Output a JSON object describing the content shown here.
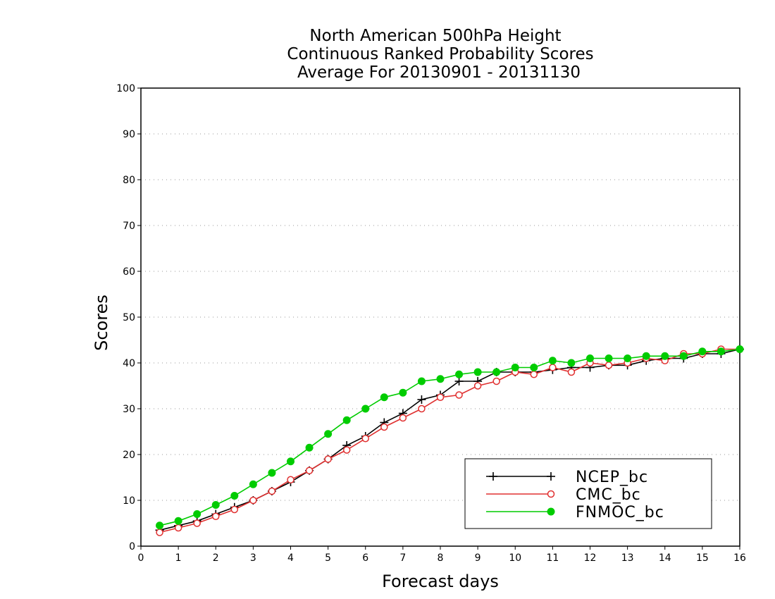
{
  "chart_data": {
    "type": "line",
    "title": [
      "North American 500hPa Height",
      "Continuous Ranked Probability Scores",
      "Average For 20130901 - 20131130"
    ],
    "xlabel": "Forecast days",
    "ylabel": "Scores",
    "xlim": [
      0,
      16
    ],
    "ylim": [
      0,
      100
    ],
    "xticks": [
      "0",
      "1",
      "2",
      "3",
      "4",
      "5",
      "6",
      "7",
      "8",
      "9",
      "10",
      "11",
      "12",
      "13",
      "14",
      "15",
      "16"
    ],
    "yticks": [
      "0",
      "10",
      "20",
      "30",
      "40",
      "50",
      "60",
      "70",
      "80",
      "90",
      "100"
    ],
    "grid": "horizontal dotted",
    "legend_position": "bottom-right",
    "x": [
      0.5,
      1,
      1.5,
      2,
      2.5,
      3,
      3.5,
      4,
      4.5,
      5,
      5.5,
      6,
      6.5,
      7,
      7.5,
      8,
      8.5,
      9,
      9.5,
      10,
      10.5,
      11,
      11.5,
      12,
      12.5,
      13,
      13.5,
      14,
      14.5,
      15,
      15.5,
      16
    ],
    "series": [
      {
        "name": "NCEP_bc",
        "color": "#000000",
        "marker": "plus",
        "values": [
          3.5,
          4.5,
          5.5,
          7,
          8.5,
          10,
          12,
          14,
          16.5,
          19,
          22,
          24,
          27,
          29,
          32,
          33,
          36,
          36,
          38,
          38,
          38,
          38.5,
          39,
          39,
          39.5,
          39.5,
          40.5,
          41,
          41,
          42,
          42,
          43
        ]
      },
      {
        "name": "CMC_bc",
        "color": "#e03030",
        "marker": "open-circle",
        "values": [
          3,
          4,
          5,
          6.5,
          8,
          10,
          12,
          14.5,
          16.5,
          19,
          21,
          23.5,
          26,
          28,
          30,
          32.5,
          33,
          35,
          36,
          38,
          37.5,
          39,
          38,
          40,
          39.5,
          40,
          41,
          40.5,
          42,
          42,
          43,
          43
        ]
      },
      {
        "name": "FNMOC_bc",
        "color": "#00cc00",
        "marker": "filled-circle",
        "values": [
          4.5,
          5.5,
          7,
          9,
          11,
          13.5,
          16,
          18.5,
          21.5,
          24.5,
          27.5,
          30,
          32.5,
          33.5,
          36,
          36.5,
          37.5,
          38,
          38,
          39,
          39,
          40.5,
          40,
          41,
          41,
          41,
          41.5,
          41.5,
          41.5,
          42.5,
          42.5,
          43
        ]
      }
    ]
  }
}
